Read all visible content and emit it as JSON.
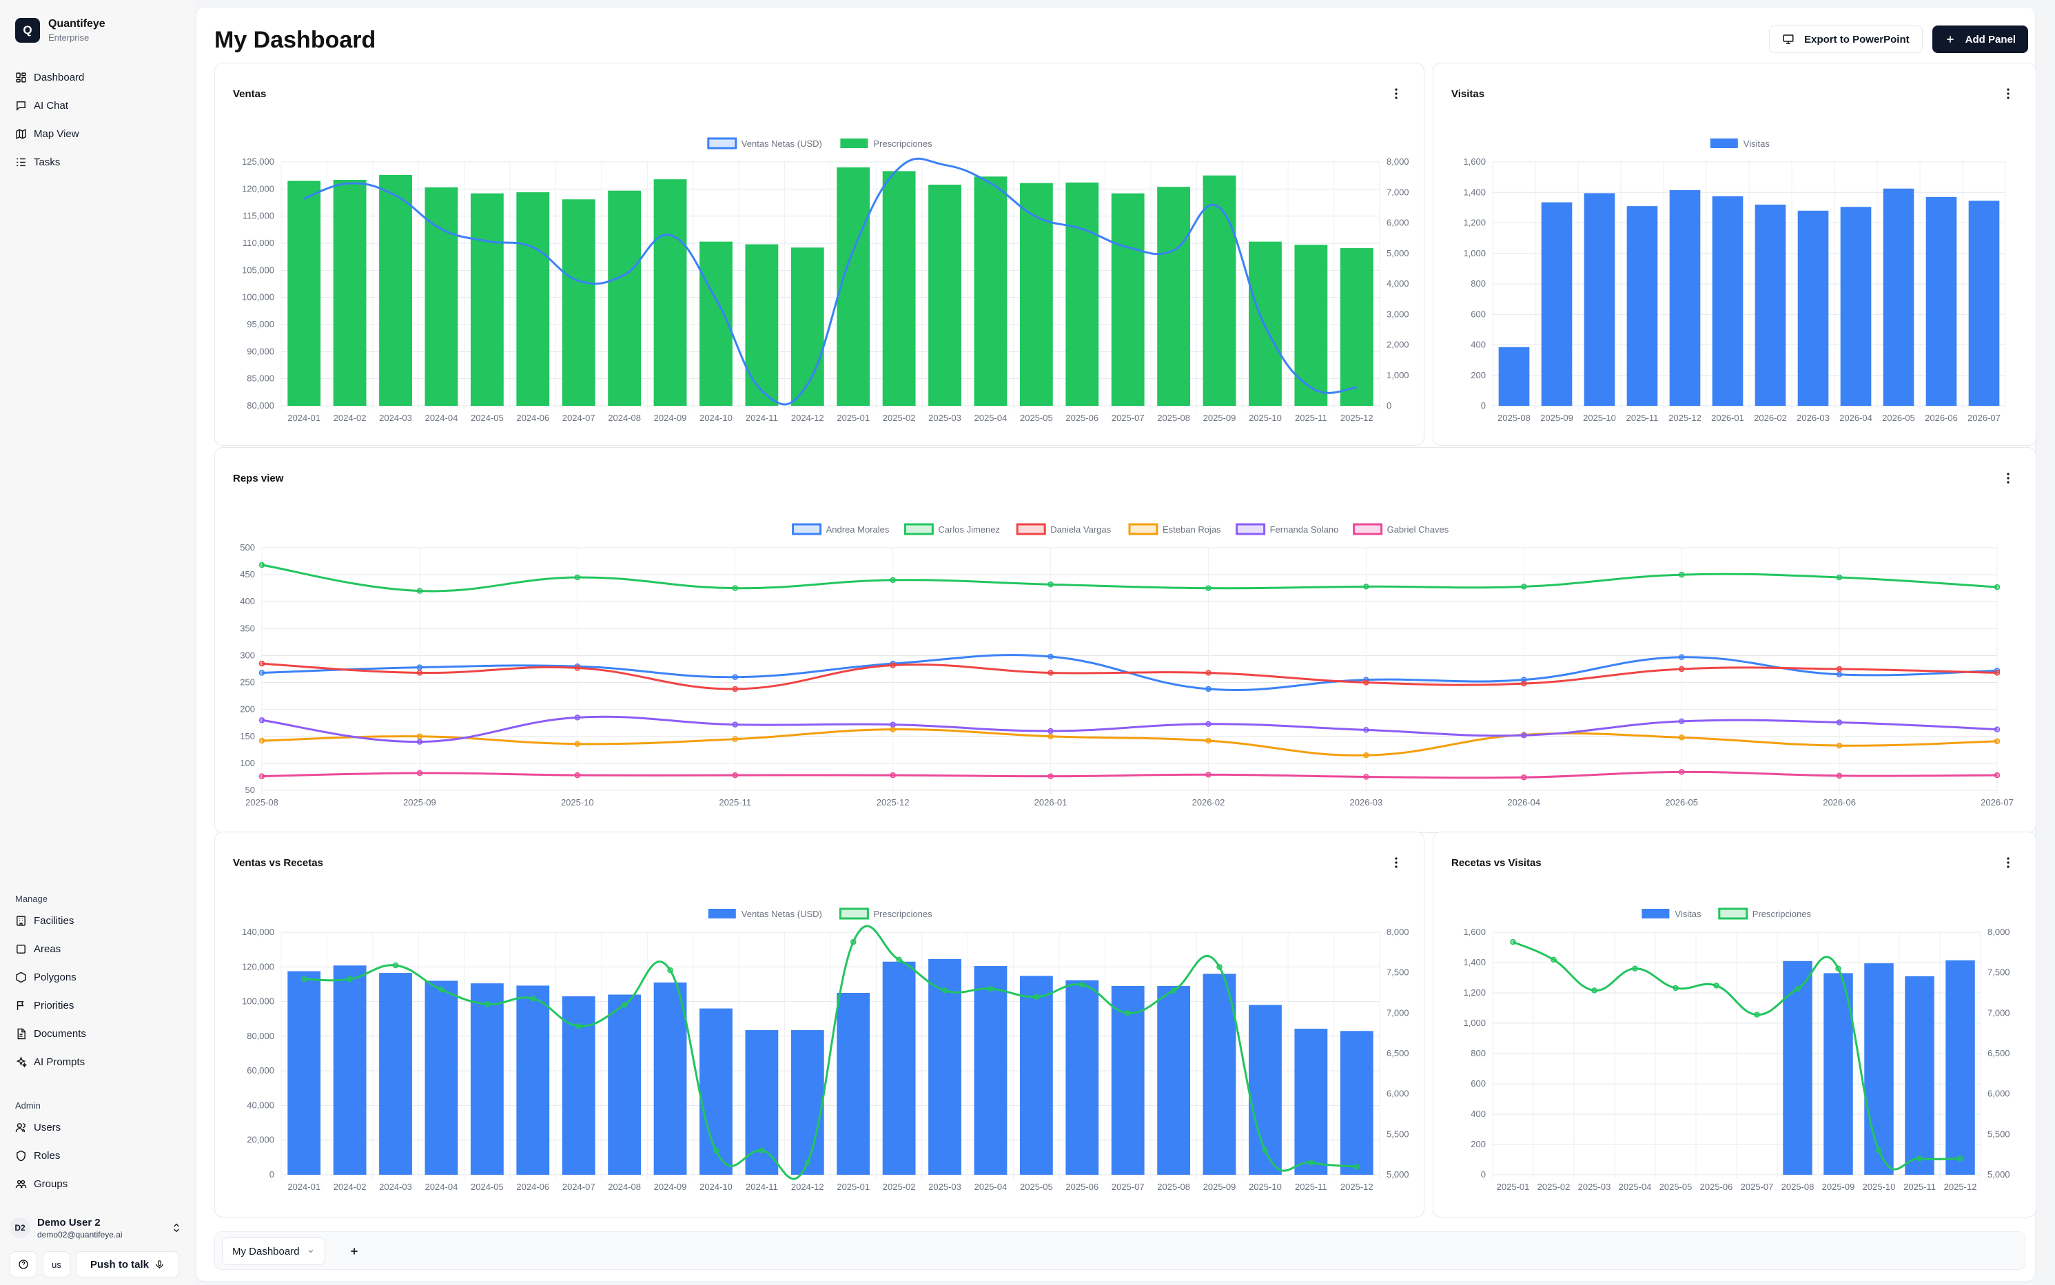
{
  "brand": {
    "name": "Quantifeye",
    "tier": "Enterprise",
    "logo_letter": "Q"
  },
  "nav": [
    {
      "label": "Dashboard",
      "icon": "dashboard-icon"
    },
    {
      "label": "AI Chat",
      "icon": "chat-icon"
    },
    {
      "label": "Map View",
      "icon": "map-icon"
    },
    {
      "label": "Tasks",
      "icon": "tasks-icon"
    }
  ],
  "manage": {
    "heading": "Manage",
    "items": [
      {
        "label": "Facilities",
        "icon": "building-icon"
      },
      {
        "label": "Areas",
        "icon": "square-icon"
      },
      {
        "label": "Polygons",
        "icon": "hexagon-icon"
      },
      {
        "label": "Priorities",
        "icon": "flag-icon"
      },
      {
        "label": "Documents",
        "icon": "file-icon"
      },
      {
        "label": "AI Prompts",
        "icon": "sparkles-icon"
      }
    ]
  },
  "admin": {
    "heading": "Admin",
    "items": [
      {
        "label": "Users",
        "icon": "users-icon"
      },
      {
        "label": "Roles",
        "icon": "shield-icon"
      },
      {
        "label": "Groups",
        "icon": "group-icon"
      }
    ]
  },
  "user": {
    "initials": "D2",
    "name": "Demo User 2",
    "email": "demo02@quantifeye.ai"
  },
  "bottom": {
    "locale": "us",
    "push_to_talk": "Push to talk"
  },
  "header": {
    "title": "My Dashboard",
    "export_label": "Export to PowerPoint",
    "add_panel_label": "Add Panel"
  },
  "tabs": {
    "active": "My Dashboard"
  },
  "colors": {
    "green": "#22c55e",
    "blue": "#3b82f6",
    "red": "#ef4444",
    "orange": "#f59e0b",
    "purple": "#8b5cf6",
    "pink": "#ec4899"
  },
  "chart_data": [
    {
      "id": "ventas",
      "title": "Ventas",
      "type": "bar",
      "categories": [
        "2024-01",
        "2024-02",
        "2024-03",
        "2024-04",
        "2024-05",
        "2024-06",
        "2024-07",
        "2024-08",
        "2024-09",
        "2024-10",
        "2024-11",
        "2024-12",
        "2025-01",
        "2025-02",
        "2025-03",
        "2025-04",
        "2025-05",
        "2025-06",
        "2025-07",
        "2025-08",
        "2025-09",
        "2025-10",
        "2025-11",
        "2025-12"
      ],
      "series": [
        {
          "name": "Ventas Netas (USD)",
          "type": "line",
          "axis": "y2",
          "color": "#3b82f6",
          "values": [
            6800,
            7300,
            6900,
            5800,
            5400,
            5200,
            4100,
            4300,
            5600,
            3500,
            500,
            700,
            5100,
            7800,
            7900,
            7300,
            6200,
            5800,
            5200,
            5100,
            6500,
            2600,
            600,
            600
          ]
        },
        {
          "name": "Prescripciones",
          "type": "bar",
          "axis": "y",
          "color": "#22c55e",
          "values": [
            121500,
            121700,
            122600,
            120300,
            119200,
            119400,
            118100,
            119700,
            121800,
            110300,
            109800,
            109200,
            124000,
            123300,
            120800,
            122300,
            121100,
            121200,
            119200,
            120400,
            122500,
            110300,
            109700,
            109100
          ]
        }
      ],
      "ylim": [
        80000,
        125000
      ],
      "yticks": [
        80000,
        85000,
        90000,
        95000,
        100000,
        105000,
        110000,
        115000,
        120000,
        125000
      ],
      "y2lim": [
        0,
        8000
      ],
      "y2ticks": [
        0,
        1000,
        2000,
        3000,
        4000,
        5000,
        6000,
        7000,
        8000
      ],
      "legend": "top"
    },
    {
      "id": "visitas",
      "title": "Visitas",
      "type": "bar",
      "categories": [
        "2025-08",
        "2025-09",
        "2025-10",
        "2025-11",
        "2025-12",
        "2026-01",
        "2026-02",
        "2026-03",
        "2026-04",
        "2026-05",
        "2026-06",
        "2026-07"
      ],
      "series": [
        {
          "name": "Visitas",
          "type": "bar",
          "axis": "y",
          "color": "#3b82f6",
          "values": [
            385,
            1335,
            1395,
            1310,
            1415,
            1375,
            1320,
            1280,
            1305,
            1425,
            1370,
            1345
          ]
        }
      ],
      "ylim": [
        0,
        1600
      ],
      "yticks": [
        0,
        200,
        400,
        600,
        800,
        1000,
        1200,
        1400,
        1600
      ],
      "legend": "top"
    },
    {
      "id": "reps",
      "title": "Reps view",
      "type": "line",
      "categories": [
        "2025-08",
        "2025-09",
        "2025-10",
        "2025-11",
        "2025-12",
        "2026-01",
        "2026-02",
        "2026-03",
        "2026-04",
        "2026-05",
        "2026-06",
        "2026-07"
      ],
      "series": [
        {
          "name": "Andrea Morales",
          "color": "#3b82f6",
          "values": [
            268,
            278,
            280,
            260,
            285,
            298,
            238,
            255,
            255,
            297,
            265,
            272
          ]
        },
        {
          "name": "Carlos Jimenez",
          "color": "#22c55e",
          "values": [
            468,
            420,
            445,
            425,
            440,
            432,
            425,
            428,
            428,
            450,
            445,
            427
          ]
        },
        {
          "name": "Daniela Vargas",
          "color": "#ef4444",
          "values": [
            285,
            268,
            277,
            238,
            282,
            268,
            268,
            250,
            248,
            275,
            275,
            268
          ]
        },
        {
          "name": "Esteban Rojas",
          "color": "#f59e0b",
          "values": [
            142,
            150,
            136,
            145,
            163,
            150,
            142,
            115,
            153,
            148,
            133,
            141
          ]
        },
        {
          "name": "Fernanda Solano",
          "color": "#8b5cf6",
          "values": [
            180,
            140,
            185,
            172,
            172,
            160,
            173,
            162,
            152,
            178,
            176,
            163
          ]
        },
        {
          "name": "Gabriel Chaves",
          "color": "#ec4899",
          "values": [
            76,
            82,
            78,
            78,
            78,
            76,
            79,
            75,
            74,
            84,
            77,
            78
          ]
        }
      ],
      "ylim": [
        50,
        500
      ],
      "yticks": [
        50,
        100,
        150,
        200,
        250,
        300,
        350,
        400,
        450,
        500
      ],
      "legend": "top"
    },
    {
      "id": "ventas-vs-recetas",
      "title": "Ventas vs Recetas",
      "type": "bar",
      "categories": [
        "2024-01",
        "2024-02",
        "2024-03",
        "2024-04",
        "2024-05",
        "2024-06",
        "2024-07",
        "2024-08",
        "2024-09",
        "2024-10",
        "2024-11",
        "2024-12",
        "2025-01",
        "2025-02",
        "2025-03",
        "2025-04",
        "2025-05",
        "2025-06",
        "2025-07",
        "2025-08",
        "2025-09",
        "2025-10",
        "2025-11",
        "2025-12"
      ],
      "series": [
        {
          "name": "Ventas Netas (USD)",
          "type": "bar",
          "axis": "y",
          "color": "#3b82f6",
          "values": [
            117500,
            120800,
            116500,
            112000,
            110500,
            109200,
            103000,
            104000,
            111000,
            96000,
            83500,
            83500,
            105000,
            123000,
            124500,
            120500,
            114800,
            112300,
            109000,
            109000,
            116000,
            98000,
            84300,
            83000
          ]
        },
        {
          "name": "Prescripciones",
          "type": "line",
          "axis": "y2",
          "color": "#22c55e",
          "values": [
            7420,
            7420,
            7590,
            7290,
            7110,
            7180,
            6840,
            7100,
            7530,
            5300,
            5300,
            5150,
            7880,
            7660,
            7280,
            7300,
            7200,
            7350,
            7000,
            7280,
            7570,
            5300,
            5150,
            5100
          ]
        }
      ],
      "ylim": [
        0,
        140000
      ],
      "yticks": [
        0,
        20000,
        40000,
        60000,
        80000,
        100000,
        120000,
        140000
      ],
      "y2lim": [
        5000,
        8000
      ],
      "y2ticks": [
        5000,
        5500,
        6000,
        6500,
        7000,
        7500,
        8000
      ],
      "legend": "top"
    },
    {
      "id": "recetas-vs-visitas",
      "title": "Recetas vs Visitas",
      "type": "bar",
      "categories": [
        "2025-01",
        "2025-02",
        "2025-03",
        "2025-04",
        "2025-05",
        "2025-06",
        "2025-07",
        "2025-08",
        "2025-09",
        "2025-10",
        "2025-11",
        "2025-12"
      ],
      "series": [
        {
          "name": "Visitas",
          "type": "bar",
          "axis": "y",
          "color": "#3b82f6",
          "values": [
            null,
            null,
            null,
            null,
            null,
            null,
            null,
            1410,
            1330,
            1395,
            1310,
            1415
          ]
        },
        {
          "name": "Prescripciones",
          "type": "line",
          "axis": "y2",
          "color": "#22c55e",
          "values": [
            7880,
            7660,
            7280,
            7550,
            7310,
            7340,
            6980,
            7300,
            7550,
            5300,
            5200,
            5200
          ]
        }
      ],
      "ylim": [
        0,
        1600
      ],
      "yticks": [
        0,
        200,
        400,
        600,
        800,
        1000,
        1200,
        1400,
        1600
      ],
      "y2lim": [
        5000,
        8000
      ],
      "y2ticks": [
        5000,
        5500,
        6000,
        6500,
        7000,
        7500,
        8000
      ],
      "legend": "top"
    }
  ]
}
